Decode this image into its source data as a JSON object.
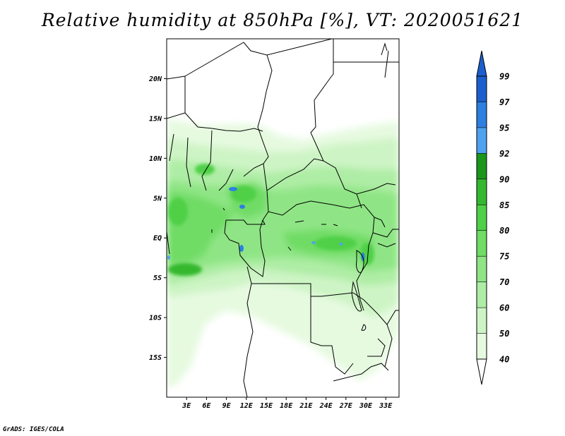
{
  "title": "Relative humidity at 850hPa [%], VT: 2020051621",
  "credit": "GrADS: IGES/COLA",
  "map": {
    "lon_range": [
      0,
      35
    ],
    "lat_range": [
      -20,
      25
    ],
    "lat_ticks": [
      {
        "value": 20,
        "label": "20N"
      },
      {
        "value": 15,
        "label": "15N"
      },
      {
        "value": 10,
        "label": "10N"
      },
      {
        "value": 5,
        "label": "5N"
      },
      {
        "value": 0,
        "label": "EQ"
      },
      {
        "value": -5,
        "label": "5S"
      },
      {
        "value": -10,
        "label": "10S"
      },
      {
        "value": -15,
        "label": "15S"
      }
    ],
    "lon_ticks": [
      {
        "value": 3,
        "label": "3E"
      },
      {
        "value": 6,
        "label": "6E"
      },
      {
        "value": 9,
        "label": "9E"
      },
      {
        "value": 12,
        "label": "12E"
      },
      {
        "value": 15,
        "label": "15E"
      },
      {
        "value": 18,
        "label": "18E"
      },
      {
        "value": 21,
        "label": "21E"
      },
      {
        "value": 24,
        "label": "24E"
      },
      {
        "value": 27,
        "label": "27E"
      },
      {
        "value": 30,
        "label": "30E"
      },
      {
        "value": 33,
        "label": "33E"
      }
    ]
  },
  "colorbar": {
    "levels": [
      {
        "value": 40,
        "label": "40",
        "color": "#ffffff"
      },
      {
        "value": 50,
        "label": "50",
        "color": "#e6fae0"
      },
      {
        "value": 60,
        "label": "60",
        "color": "#cdf4c5"
      },
      {
        "value": 70,
        "label": "70",
        "color": "#aeeda5"
      },
      {
        "value": 75,
        "label": "75",
        "color": "#8fe585"
      },
      {
        "value": 80,
        "label": "80",
        "color": "#6fdc65"
      },
      {
        "value": 85,
        "label": "85",
        "color": "#4fd047"
      },
      {
        "value": 90,
        "label": "90",
        "color": "#34b82f"
      },
      {
        "value": 92,
        "label": "92",
        "color": "#1a961c"
      },
      {
        "value": 95,
        "label": "95",
        "color": "#4ea2ef"
      },
      {
        "value": 97,
        "label": "97",
        "color": "#2d7fe1"
      },
      {
        "value": 99,
        "label": "99",
        "color": "#1b5fce"
      }
    ]
  }
}
